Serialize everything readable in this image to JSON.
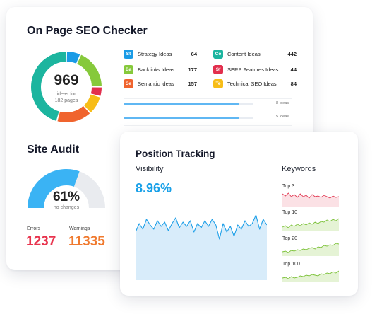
{
  "seo_checker": {
    "title": "On Page SEO Checker",
    "total": "969",
    "total_sub_1": "ideas for",
    "total_sub_2": "182 pages",
    "ideas": [
      {
        "badge": "St",
        "name": "Strategy Ideas",
        "value": "64",
        "color": "#1a9be6"
      },
      {
        "badge": "Co",
        "name": "Content Ideas",
        "value": "442",
        "color": "#1cb59f"
      },
      {
        "badge": "Ba",
        "name": "Backlinks Ideas",
        "value": "177",
        "color": "#86c93b"
      },
      {
        "badge": "Sf",
        "name": "SERP Features Ideas",
        "value": "44",
        "color": "#e22f4d"
      },
      {
        "badge": "Se",
        "name": "Semantic Ideas",
        "value": "157",
        "color": "#f0642e"
      },
      {
        "badge": "Te",
        "name": "Technical SEO Ideas",
        "value": "84",
        "color": "#f7bd17"
      }
    ],
    "progress": [
      {
        "label": "8 Ideas",
        "fraction": 0.89
      },
      {
        "label": "5 Ideas",
        "fraction": 0.89
      }
    ]
  },
  "site_audit": {
    "title": "Site Audit",
    "percent": "61%",
    "percent_value": 0.61,
    "percent_sub": "no changes",
    "errors_label": "Errors",
    "errors_value": "1237",
    "warnings_label": "Warnings",
    "warnings_value": "11335",
    "colors": {
      "fill": "#3ab3f4",
      "track": "#e9ebef"
    }
  },
  "position_tracking": {
    "title": "Position Tracking",
    "visibility_label": "Visibility",
    "visibility_value": "8.96%",
    "keywords_label": "Keywords",
    "keywords": [
      {
        "label": "Top 3",
        "color": "#e23b55",
        "fill": "#fbe1e5"
      },
      {
        "label": "Top 10",
        "color": "#7dc23a",
        "fill": "#e5f3d5"
      },
      {
        "label": "Top 20",
        "color": "#7dc23a",
        "fill": "#e5f3d5"
      },
      {
        "label": "Top 100",
        "color": "#7dc23a",
        "fill": "#e5f3d5"
      }
    ],
    "colors": {
      "line": "#1d9fe8",
      "area": "#d8ecfa"
    }
  }
}
